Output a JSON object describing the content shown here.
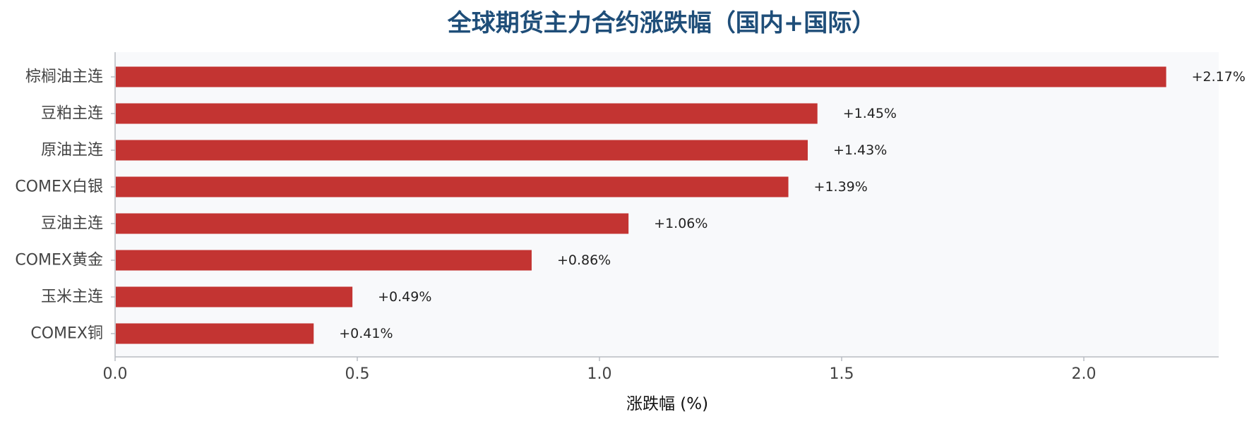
{
  "chart_data": {
    "type": "bar",
    "orientation": "horizontal",
    "title": "全球期货主力合约涨跌幅（国内+国际）",
    "xlabel": "涨跌幅 (%)",
    "ylabel": "",
    "categories": [
      "棕榈油主连",
      "豆粕主连",
      "原油主连",
      "COMEX白银",
      "豆油主连",
      "COMEX黄金",
      "玉米主连",
      "COMEX铜"
    ],
    "values": [
      2.17,
      1.45,
      1.43,
      1.39,
      1.06,
      0.86,
      0.49,
      0.41
    ],
    "value_labels": [
      "+2.17%",
      "+1.45%",
      "+1.43%",
      "+1.39%",
      "+1.06%",
      "+0.86%",
      "+0.49%",
      "+0.41%"
    ],
    "xlim": [
      0,
      2.28
    ],
    "xticks": [
      0.0,
      0.5,
      1.0,
      1.5,
      2.0
    ],
    "xtick_labels": [
      "0.0",
      "0.5",
      "1.0",
      "1.5",
      "2.0"
    ],
    "grid": false,
    "legend": "none",
    "colors": {
      "bar": "#c33432",
      "plot_background": "#f8f9fb",
      "title": "#1f4e79",
      "axis": "#b8bcc2"
    }
  }
}
